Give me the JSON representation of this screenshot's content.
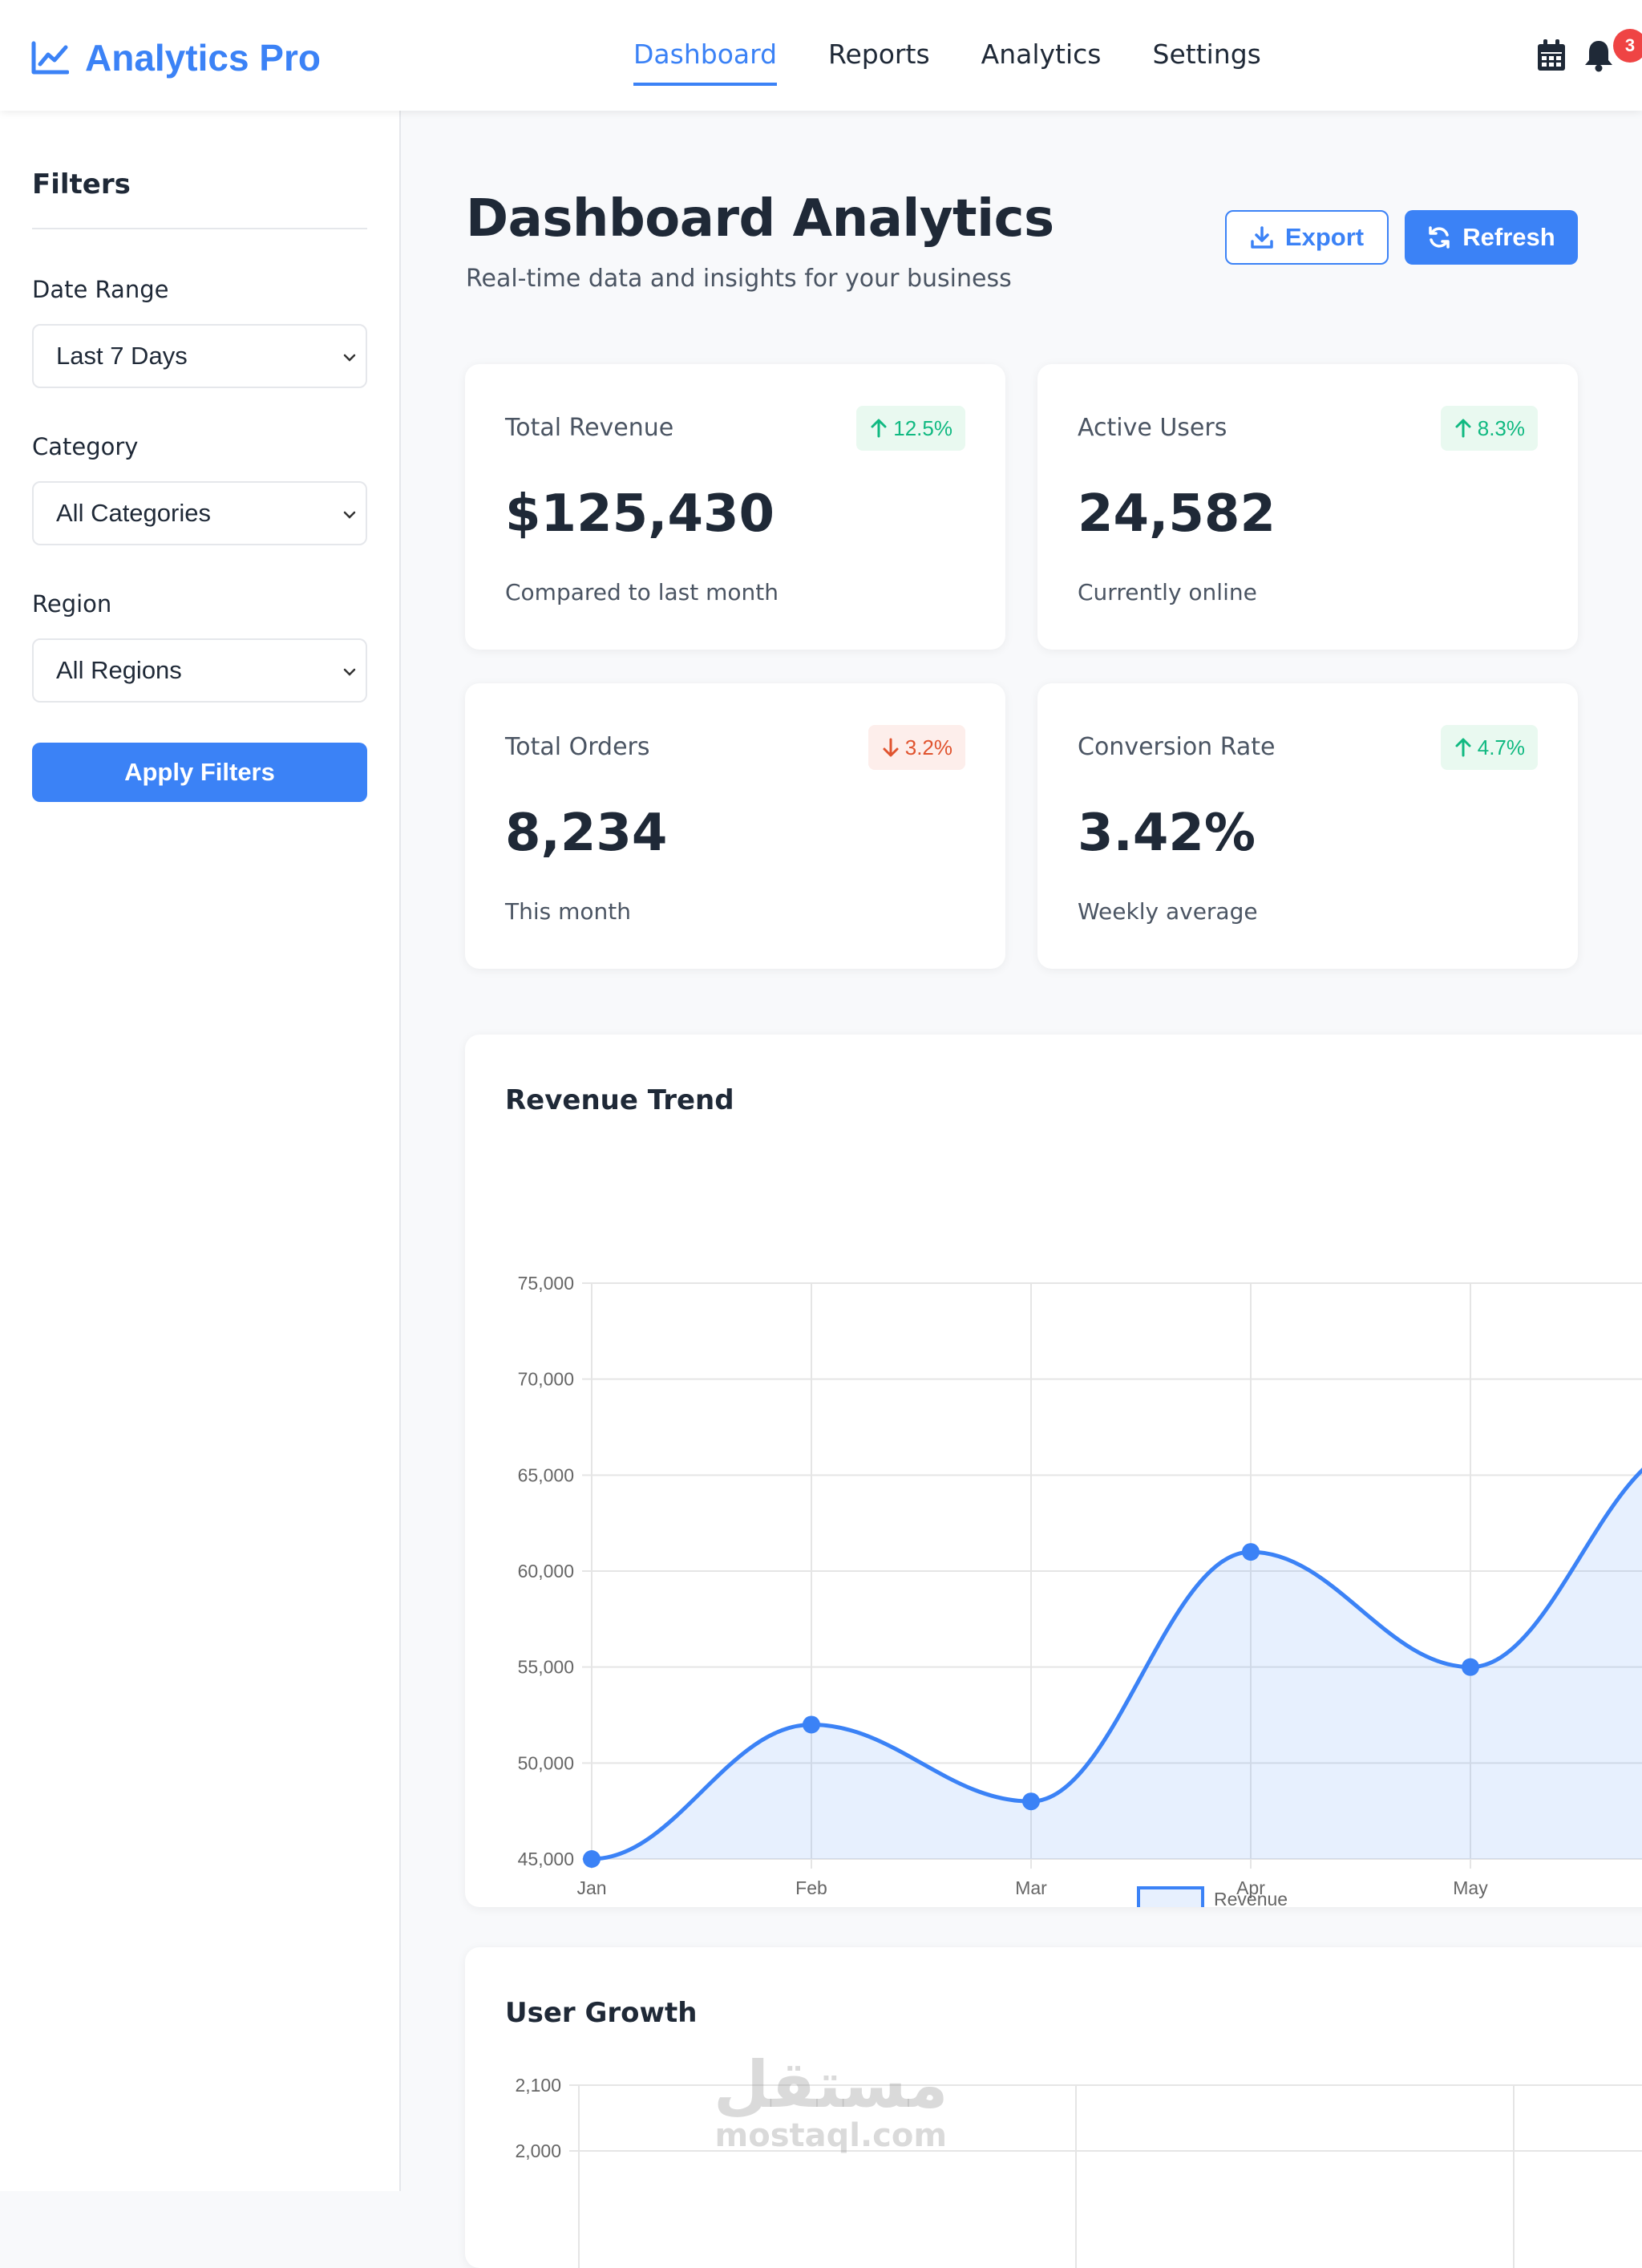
{
  "header": {
    "brand": "Analytics Pro",
    "nav": [
      "Dashboard",
      "Reports",
      "Analytics",
      "Settings"
    ],
    "active_nav": "Dashboard",
    "notification_count": "3"
  },
  "sidebar": {
    "title": "Filters",
    "filters": [
      {
        "label": "Date Range",
        "value": "Last 7 Days"
      },
      {
        "label": "Category",
        "value": "All Categories"
      },
      {
        "label": "Region",
        "value": "All Regions"
      }
    ],
    "apply_label": "Apply Filters"
  },
  "page": {
    "title": "Dashboard Analytics",
    "subtitle": "Real-time data and insights for your business",
    "export_label": "Export",
    "refresh_label": "Refresh"
  },
  "stats": [
    {
      "label": "Total Revenue",
      "value": "$125,430",
      "note": "Compared to last month",
      "trend": "12.5%",
      "direction": "up"
    },
    {
      "label": "Active Users",
      "value": "24,582",
      "note": "Currently online",
      "trend": "8.3%",
      "direction": "up"
    },
    {
      "label": "Total Orders",
      "value": "8,234",
      "note": "This month",
      "trend": "3.2%",
      "direction": "down"
    },
    {
      "label": "Conversion Rate",
      "value": "3.42%",
      "note": "Weekly average",
      "trend": "4.7%",
      "direction": "up"
    }
  ],
  "colors": {
    "accent": "#3b82f6",
    "positive": "#10b981",
    "negative": "#e0532e"
  },
  "chart_data": [
    {
      "type": "line",
      "title": "Revenue Trend",
      "x": [
        "Jan",
        "Feb",
        "Mar",
        "Apr",
        "May"
      ],
      "series": [
        {
          "name": "Revenue",
          "values": [
            45000,
            52000,
            48000,
            61000,
            55000
          ]
        }
      ],
      "ylim": [
        45000,
        75000
      ],
      "yticks": [
        75000,
        70000,
        65000,
        60000,
        55000,
        50000,
        45000
      ],
      "ytick_labels": [
        "75,000",
        "70,000",
        "65,000",
        "60,000",
        "55,000",
        "50,000",
        "45,000"
      ],
      "grid": true,
      "legend": "bottom",
      "fill": true
    },
    {
      "type": "line",
      "title": "User Growth",
      "yticks": [
        2100,
        2000
      ],
      "ytick_labels": [
        "2,100",
        "2,000"
      ],
      "grid": true
    }
  ],
  "watermark": {
    "arabic": "مستقل",
    "latin": "mostaql.com"
  }
}
